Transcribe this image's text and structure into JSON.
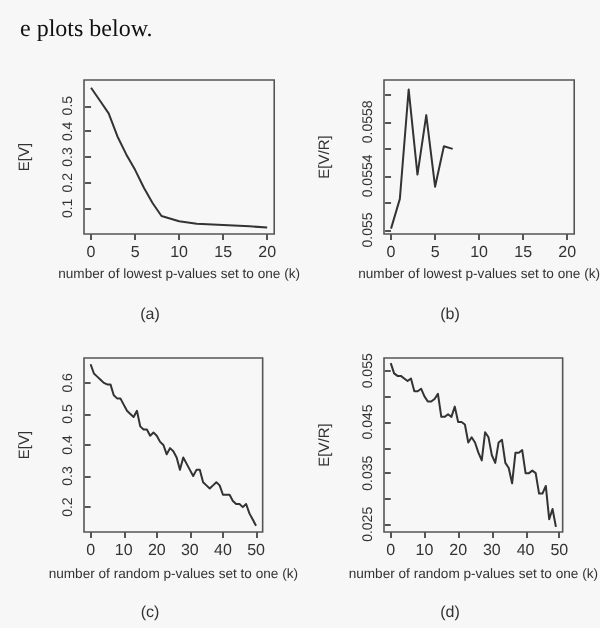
{
  "chart_data": [
    {
      "type": "line",
      "xlabel": "number of lowest p-values set to one (k)",
      "ylabel": "E[V]",
      "annotations": [
        "(a)",
        "e plots below."
      ],
      "x": [
        0,
        1,
        2,
        3,
        4,
        5,
        6,
        7,
        8,
        10,
        12,
        15,
        18,
        20
      ],
      "values": [
        0.57,
        0.52,
        0.47,
        0.38,
        0.31,
        0.25,
        0.18,
        0.12,
        0.07,
        0.05,
        0.04,
        0.035,
        0.03,
        0.025
      ],
      "color": "#333333",
      "xlim": [
        -0.8,
        20.8
      ],
      "ylim": [
        0.0,
        0.6
      ],
      "xticks": [
        0,
        5,
        10,
        15,
        20
      ],
      "yticks": [
        0.1,
        0.2,
        0.3,
        0.4,
        0.5
      ],
      "marker": "none",
      "line_style": "solid",
      "grid": false
    },
    {
      "type": "line",
      "xlabel": "number of lowest p-values set to one (k)",
      "ylabel": "E[V/R]",
      "annotations": [
        "(b)"
      ],
      "x": [
        0,
        1,
        2,
        3,
        4,
        5,
        6,
        7
      ],
      "values": [
        0.05501,
        0.05523,
        0.05604,
        0.05541,
        0.05585,
        0.05532,
        0.05562,
        0.0556
      ],
      "color": "#333333",
      "xlim": [
        -0.8,
        20.8
      ],
      "ylim": [
        0.05497,
        0.05611
      ],
      "xticks": [
        0,
        5,
        10,
        15,
        20
      ],
      "yticks": [
        0.055,
        {
          "value": 0.0552,
          "label": null
        },
        {
          "value": 0.0554,
          "label": "0.0554"
        },
        {
          "value": 0.0556,
          "label": null
        },
        {
          "value": 0.0558,
          "label": "0.0558"
        },
        {
          "value": 0.056,
          "label": null
        }
      ],
      "marker": "none",
      "line_style": "solid",
      "grid": false
    },
    {
      "type": "line",
      "xlabel": "number of random p-values set to one (k)",
      "ylabel": "E[V]",
      "annotations": [
        "(c)"
      ],
      "x": [
        0,
        1,
        2,
        3,
        4,
        5,
        6,
        7,
        8,
        9,
        10,
        11,
        12,
        13,
        14,
        15,
        16,
        17,
        18,
        19,
        20,
        21,
        22,
        23,
        24,
        25,
        26,
        27,
        28,
        29,
        30,
        31,
        32,
        33,
        34,
        35,
        36,
        37,
        38,
        39,
        40,
        41,
        42,
        43,
        44,
        45,
        46,
        47,
        48,
        49,
        50
      ],
      "values": [
        0.66,
        0.63,
        0.62,
        0.61,
        0.6,
        0.595,
        0.595,
        0.56,
        0.55,
        0.55,
        0.53,
        0.51,
        0.5,
        0.49,
        0.51,
        0.46,
        0.45,
        0.45,
        0.43,
        0.44,
        0.43,
        0.41,
        0.4,
        0.37,
        0.39,
        0.38,
        0.36,
        0.32,
        0.36,
        0.34,
        0.32,
        0.3,
        0.32,
        0.32,
        0.28,
        0.27,
        0.26,
        0.27,
        0.28,
        0.27,
        0.24,
        0.24,
        0.24,
        0.22,
        0.21,
        0.21,
        0.2,
        0.21,
        0.18,
        0.16,
        0.14
      ],
      "color": "#333333",
      "xlim": [
        -2,
        52
      ],
      "ylim": [
        0.12,
        0.68
      ],
      "xticks": [
        0,
        10,
        20,
        30,
        40,
        50
      ],
      "yticks": [
        0.2,
        0.3,
        0.4,
        0.5,
        0.6
      ],
      "marker": "none",
      "line_style": "solid",
      "grid": false
    },
    {
      "type": "line",
      "xlabel": "number of random p-values set to one (k)",
      "ylabel": "E[V/R]",
      "annotations": [
        "(d)"
      ],
      "x": [
        0,
        1,
        2,
        3,
        4,
        5,
        6,
        7,
        8,
        9,
        10,
        11,
        12,
        13,
        14,
        15,
        16,
        17,
        18,
        19,
        20,
        21,
        22,
        23,
        24,
        25,
        26,
        27,
        28,
        29,
        30,
        31,
        32,
        33,
        34,
        35,
        36,
        37,
        38,
        39,
        40,
        41,
        42,
        43,
        44,
        45,
        46,
        47,
        48,
        49
      ],
      "values": [
        0.0565,
        0.0545,
        0.054,
        0.054,
        0.0535,
        0.053,
        0.0535,
        0.051,
        0.051,
        0.0515,
        0.05,
        0.049,
        0.049,
        0.0495,
        0.0505,
        0.046,
        0.046,
        0.0465,
        0.046,
        0.048,
        0.045,
        0.045,
        0.0445,
        0.041,
        0.042,
        0.041,
        0.039,
        0.0375,
        0.043,
        0.042,
        0.0385,
        0.037,
        0.041,
        0.0415,
        0.037,
        0.036,
        0.033,
        0.039,
        0.039,
        0.0395,
        0.035,
        0.035,
        0.0355,
        0.035,
        0.031,
        0.031,
        0.0325,
        0.026,
        0.028,
        0.0245
      ],
      "color": "#333333",
      "xlim": [
        -2,
        51
      ],
      "ylim": [
        0.0235,
        0.0575
      ],
      "xticks": [
        0,
        10,
        20,
        30,
        40,
        50
      ],
      "yticks": [
        0.025,
        {
          "value": 0.03,
          "label": null
        },
        0.035,
        {
          "value": 0.04,
          "label": null
        },
        0.045,
        {
          "value": 0.05,
          "label": null
        },
        0.055
      ],
      "marker": "none",
      "line_style": "solid",
      "grid": false
    }
  ]
}
